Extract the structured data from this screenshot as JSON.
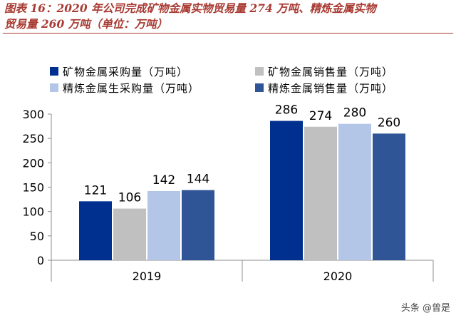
{
  "figure": {
    "title_line1": "图表 16：2020 年公司完成矿物金属实物贸易量 274 万吨、精炼金属实物",
    "title_line2": "贸易量 260 万吨（单位：万吨）"
  },
  "watermark": "头条 @曾是",
  "colors": {
    "title": "#a83b33",
    "series": [
      "#00308f",
      "#c0c0c0",
      "#b4c6e7",
      "#2f5597"
    ]
  },
  "chart_data": {
    "type": "bar",
    "categories": [
      "2019",
      "2020"
    ],
    "series": [
      {
        "name": "矿物金属采购量（万吨）",
        "values": [
          121,
          286
        ]
      },
      {
        "name": "矿物金属销售量（万吨）",
        "values": [
          106,
          274
        ]
      },
      {
        "name": "精炼金属生采购量（万吨）",
        "values": [
          142,
          280
        ]
      },
      {
        "name": "精炼金属销售量（万吨）",
        "values": [
          144,
          260
        ]
      }
    ],
    "ylim": [
      0,
      300
    ],
    "yticks": [
      0,
      50,
      100,
      150,
      200,
      250,
      300
    ],
    "grid": false,
    "legend_position": "top",
    "data_labels": true
  }
}
